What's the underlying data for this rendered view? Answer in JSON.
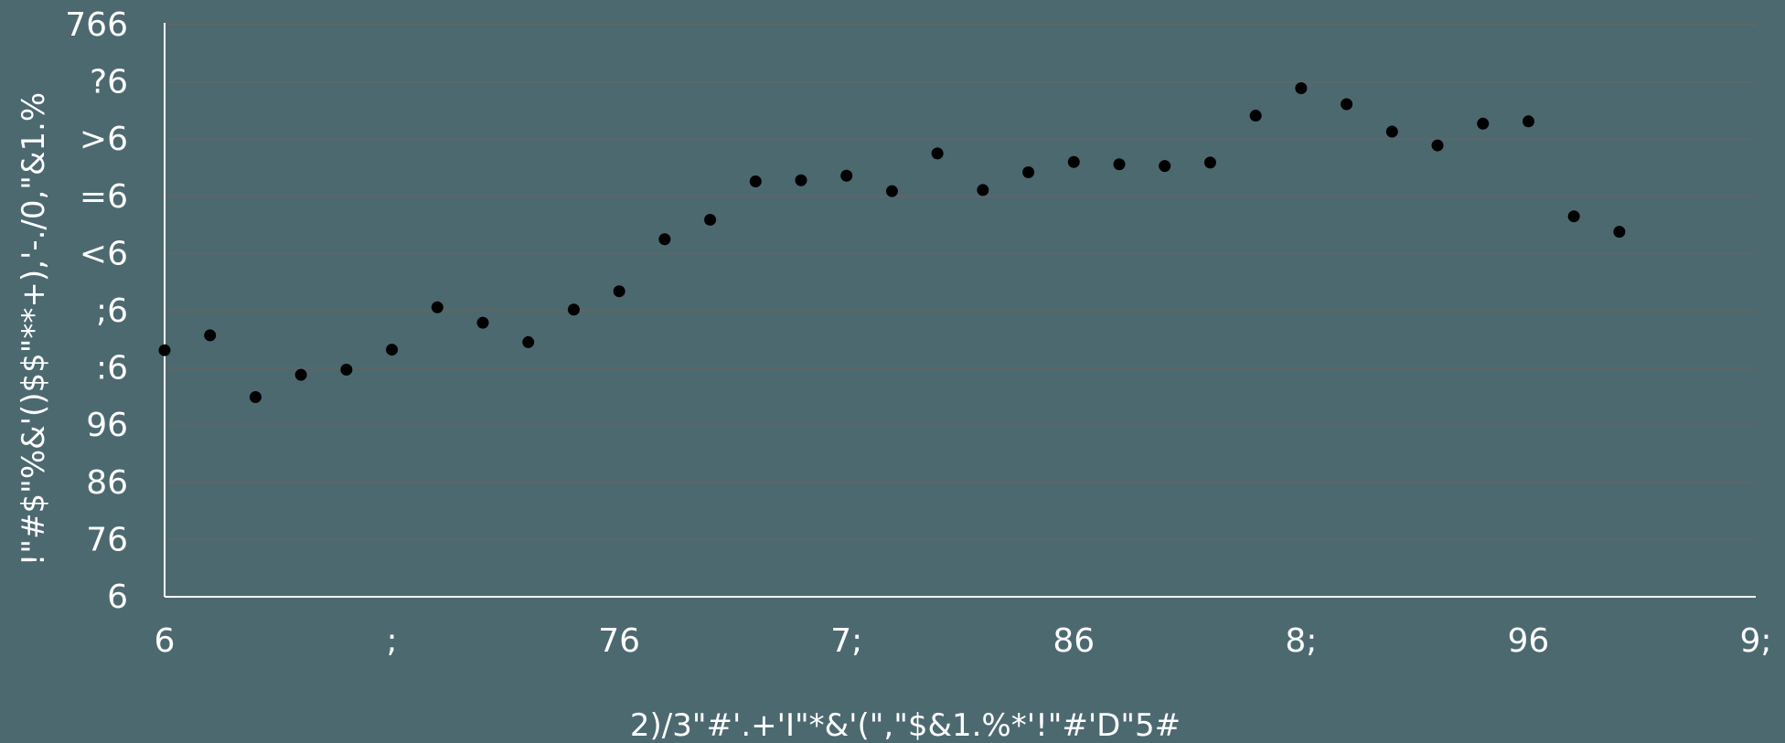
{
  "chart_data": {
    "type": "scatter",
    "title": "",
    "xlabel": "2)/3\"#'.+'I\"*&'(\",\"$&1.%*'!\"#'D\"5#",
    "ylabel": "!\"#$\"%&'()$$\"**+),'-./0,\"&1.%",
    "x_tick_labels": [
      "6",
      ";",
      "76",
      "7;",
      "86",
      "8;",
      "96",
      "9;"
    ],
    "y_tick_labels": [
      "6",
      "76",
      "86",
      "96",
      ":6",
      ";6",
      "<6",
      "=6",
      ">6",
      "?6",
      "766"
    ],
    "xlim": [
      0,
      35
    ],
    "ylim": [
      0,
      100
    ],
    "grid": true,
    "marker_color": "#000000",
    "axis_color": "#ffffff",
    "grid_color": "#646464",
    "series": [
      {
        "x": [
          0,
          1,
          2,
          3,
          4,
          5,
          6,
          7,
          8,
          9,
          10,
          11,
          12,
          13,
          14,
          15,
          16,
          17,
          18,
          19,
          20,
          21,
          22,
          23,
          24,
          25,
          26,
          27,
          28,
          29,
          30,
          31,
          32
        ],
        "y": [
          43.1,
          45.7,
          34.9,
          38.8,
          39.7,
          43.2,
          50.6,
          47.9,
          44.5,
          50.2,
          53.4,
          62.5,
          65.9,
          72.6,
          72.8,
          73.6,
          70.9,
          77.5,
          71.1,
          74.2,
          76.0,
          75.6,
          75.3,
          75.9,
          84.1,
          88.9,
          86.1,
          81.3,
          78.9,
          82.7,
          83.1,
          66.5,
          63.8
        ]
      }
    ]
  }
}
